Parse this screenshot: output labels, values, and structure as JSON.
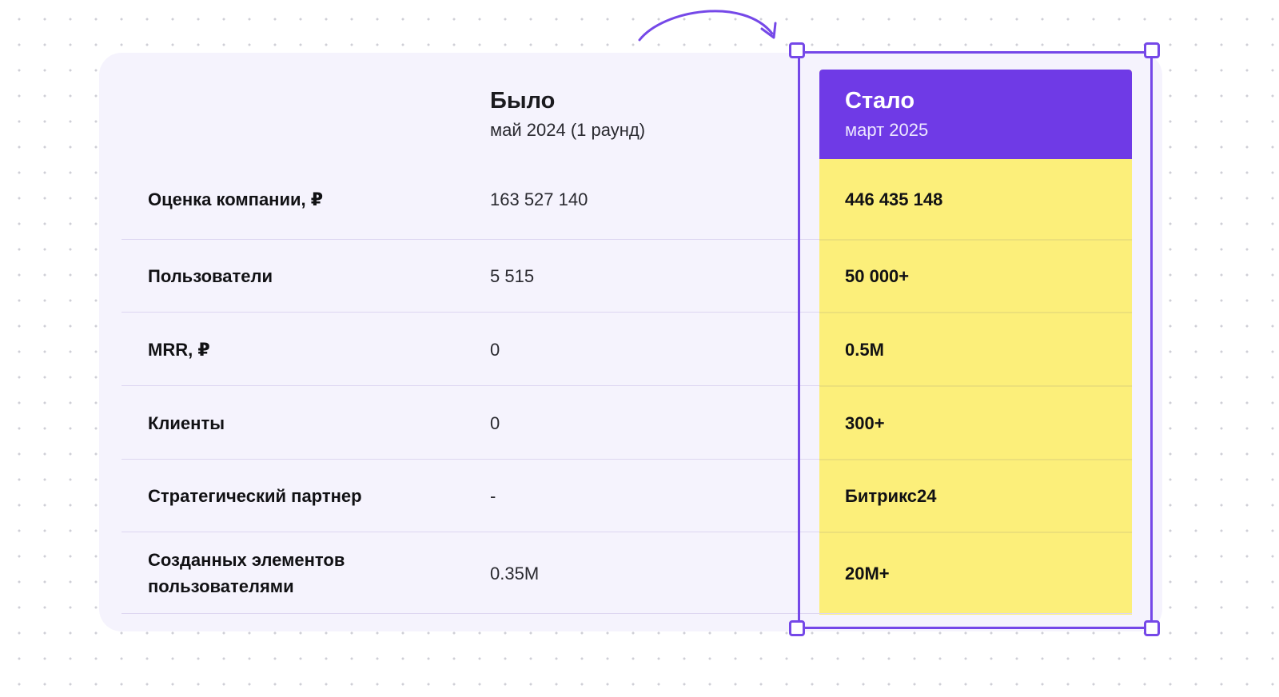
{
  "table": {
    "before_header": {
      "title": "Было",
      "subtitle": "май 2024 (1 раунд)"
    },
    "after_header": {
      "title": "Стало",
      "subtitle": "март 2025"
    },
    "rows": [
      {
        "label": "Оценка компании, ₽",
        "before": "163 527 140",
        "after": "446 435 148"
      },
      {
        "label": "Пользователи",
        "before": "5 515",
        "after": "50 000+"
      },
      {
        "label": "MRR, ₽",
        "before": "0",
        "after": "0.5M"
      },
      {
        "label": "Клиенты",
        "before": "0",
        "after": "300+"
      },
      {
        "label": "Стратегический партнер",
        "before": "-",
        "after": "Битрикс24"
      },
      {
        "label": "Созданных элементов пользователями",
        "before": "0.35M",
        "after": "20M+"
      }
    ]
  },
  "colors": {
    "card_background": "#f5f3fd",
    "accent": "#6f3ae6",
    "highlight": "#fcef7a",
    "selection": "#7548e8"
  },
  "icons": {
    "arrow": "curved-arrow-icon",
    "handle": "resize-handle-icon"
  }
}
